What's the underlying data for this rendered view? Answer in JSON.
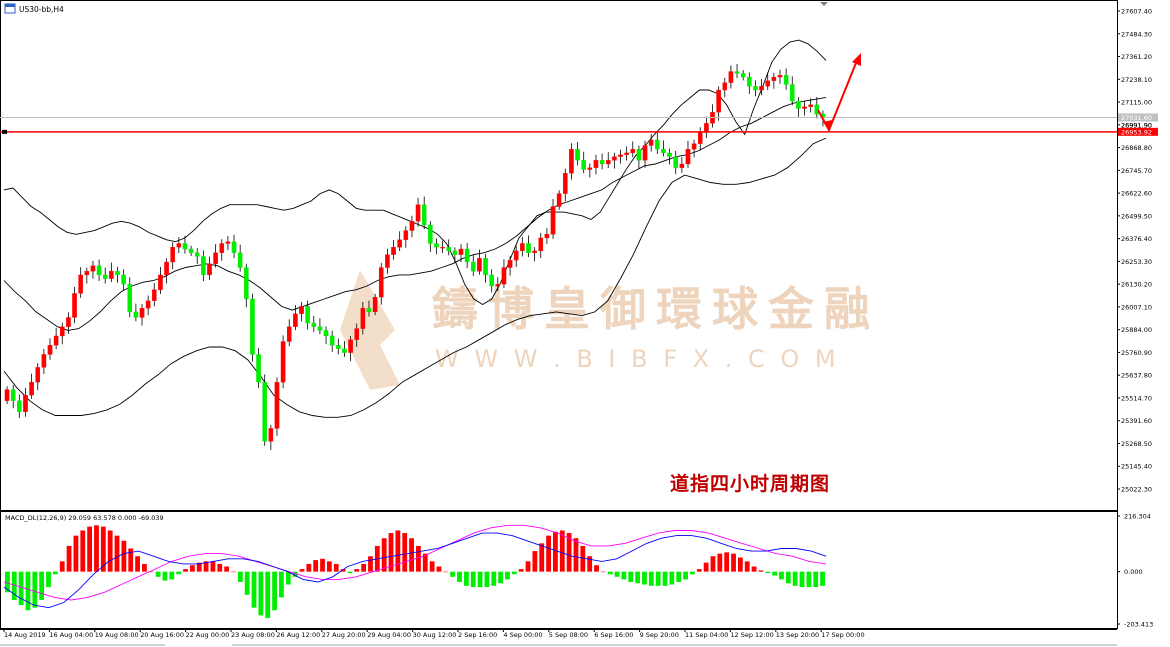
{
  "window": {
    "symbol_label": "US30-bb,H4",
    "icon": "chart-window-icon"
  },
  "annotation": {
    "caption": "道指四小时周期图",
    "caption_color": "#c00000",
    "arrow_color": "#ff0000"
  },
  "watermark": {
    "cn": "鑄博皇御環球金融",
    "url": "W W W . B I B F X . C O M",
    "color": "#e9c6a6"
  },
  "colors": {
    "bull": "#ff0000",
    "bear": "#00ee00",
    "bbands": "#000000",
    "hline": "#ff0000",
    "current_line": "#c0c0c0",
    "macd_line": "#0000ff",
    "signal_line": "#ff00ff"
  },
  "chart_data": [
    {
      "type": "candlestick",
      "title": "US30-bb,H4",
      "ylim": [
        24960,
        27660
      ],
      "y_ticks": [
        "27607.40",
        "27484.30",
        "27361.20",
        "27238.10",
        "27115.00",
        "26991.90",
        "26868.80",
        "26745.70",
        "26622.60",
        "26499.50",
        "26376.40",
        "26253.30",
        "26130.20",
        "26007.10",
        "25884.00",
        "25760.90",
        "25637.80",
        "25514.70",
        "25391.60",
        "25268.50",
        "25145.40",
        "25022.30"
      ],
      "price_labels": [
        {
          "text": "27031.60",
          "role": "current-price",
          "value": 27031.6
        },
        {
          "text": "26991.90",
          "role": "tick",
          "value": 26991.9
        },
        {
          "text": "26953.92",
          "role": "horizontal-line",
          "value": 26953.92
        }
      ],
      "horizontal_line": 26953.92,
      "current_price": 27031.6,
      "x_labels": [
        "14 Aug 2019",
        "16 Aug 04:00",
        "19 Aug 08:00",
        "20 Aug 16:00",
        "22 Aug 00:00",
        "23 Aug 08:00",
        "26 Aug 12:00",
        "27 Aug 20:00",
        "29 Aug 04:00",
        "30 Aug 12:00",
        "2 Sep 16:00",
        "4 Sep 00:00",
        "5 Sep 08:00",
        "6 Sep 16:00",
        "9 Sep 20:00",
        "11 Sep 04:00",
        "12 Sep 12:00",
        "13 Sep 20:00",
        "17 Sep 00:00"
      ],
      "ohlc_bull": [
        1,
        0,
        1,
        0,
        1,
        1,
        1,
        0,
        1,
        1,
        0,
        1,
        0,
        1,
        0,
        1,
        1,
        0,
        0,
        1,
        0,
        1,
        0,
        1,
        1,
        0,
        1,
        1,
        0,
        1,
        0,
        1,
        0,
        1,
        0,
        1,
        0,
        0,
        1,
        0,
        0,
        0,
        1,
        0,
        0,
        1,
        0,
        1,
        1,
        0,
        0,
        1,
        0,
        1,
        0,
        1,
        0,
        1,
        1,
        0,
        0,
        1,
        0,
        1,
        1,
        1,
        1,
        0,
        1,
        1,
        0,
        0,
        1,
        0,
        1,
        0,
        0,
        1,
        0,
        1,
        1,
        1,
        0,
        1,
        1,
        0,
        0,
        1,
        0,
        0,
        1,
        0,
        1,
        1,
        0,
        0,
        1,
        0,
        1,
        1,
        0,
        1,
        1,
        0,
        0,
        0,
        1,
        0,
        1,
        1,
        1,
        1,
        1,
        0,
        1,
        1,
        1,
        0,
        1,
        0,
        1,
        0,
        1,
        0,
        1,
        0,
        1,
        0,
        1,
        0,
        1,
        0,
        1,
        0,
        1,
        0,
        0,
        1,
        0,
        1,
        0,
        1,
        1,
        1,
        1,
        1,
        0,
        1,
        1,
        0,
        1,
        1,
        1,
        0,
        0,
        1,
        0,
        1,
        0,
        1,
        0,
        1,
        0,
        0,
        1,
        0,
        1,
        0,
        0,
        0,
        1,
        0,
        0,
        0,
        0
      ],
      "closes": [
        25560,
        25500,
        25440,
        25530,
        25600,
        25680,
        25750,
        25800,
        25850,
        25900,
        25950,
        26080,
        26180,
        26200,
        26230,
        26180,
        26160,
        26200,
        26180,
        26130,
        25980,
        25950,
        26000,
        26040,
        26100,
        26180,
        26250,
        26330,
        26350,
        26320,
        26300,
        26280,
        26180,
        26240,
        26300,
        26350,
        26360,
        26300,
        26220,
        26050,
        25750,
        25600,
        25280,
        25350,
        25600,
        25820,
        25900,
        25970,
        26010,
        25920,
        25900,
        25880,
        25850,
        25800,
        25780,
        25760,
        25830,
        25890,
        26000,
        25980,
        26060,
        26220,
        26290,
        26330,
        26370,
        26420,
        26470,
        26560,
        26450,
        26350,
        26330,
        26330,
        26310,
        26290,
        26320,
        26250,
        26200,
        26270,
        26180,
        26120,
        26130,
        26220,
        26260,
        26310,
        26350,
        26300,
        26310,
        26380,
        26400,
        26550,
        26620,
        26730,
        26860,
        26800,
        26750,
        26760,
        26800,
        26780,
        26800,
        26820,
        26830,
        26840,
        26860,
        26800,
        26880,
        26910,
        26860,
        26840,
        26820,
        26760,
        26780,
        26860,
        26890,
        26950,
        27000,
        27060,
        27180,
        27220,
        27280,
        27270,
        27250,
        27200,
        27180,
        27200,
        27230,
        27250,
        27260,
        27210,
        27120,
        27080,
        27090,
        27100,
        27050,
        27030
      ],
      "open_first": 25500,
      "bb_upper": [
        26640,
        26650,
        26600,
        26550,
        26520,
        26480,
        26440,
        26410,
        26400,
        26410,
        26420,
        26440,
        26460,
        26470,
        26460,
        26440,
        26410,
        26390,
        26370,
        26360,
        26380,
        26420,
        26470,
        26510,
        26540,
        26560,
        26560,
        26560,
        26560,
        26550,
        26540,
        26530,
        26540,
        26560,
        26580,
        26620,
        26640,
        26620,
        26580,
        26540,
        26530,
        26530,
        26530,
        26510,
        26490,
        26470,
        26450,
        26430,
        26400,
        26350,
        26250,
        26130,
        26050,
        26020,
        26050,
        26140,
        26260,
        26380,
        26440,
        26500,
        26520,
        26520,
        26520,
        26510,
        26500,
        26480,
        26520,
        26600,
        26680,
        26760,
        26830,
        26880,
        26940,
        26990,
        27050,
        27100,
        27140,
        27180,
        27180,
        27160,
        27100,
        27010,
        26940,
        27080,
        27200,
        27330,
        27400,
        27440,
        27450,
        27430,
        27390,
        27340
      ],
      "bb_mid": [
        26150,
        26090,
        26040,
        25980,
        25940,
        25900,
        25880,
        25890,
        25930,
        25980,
        26040,
        26090,
        26120,
        26140,
        26150,
        26170,
        26200,
        26220,
        26230,
        26240,
        26230,
        26200,
        26180,
        26150,
        26110,
        26060,
        26010,
        25990,
        26010,
        26030,
        26050,
        26070,
        26090,
        26100,
        26120,
        26150,
        26170,
        26180,
        26180,
        26190,
        26200,
        26220,
        26240,
        26270,
        26290,
        26300,
        26320,
        26350,
        26390,
        26440,
        26490,
        26530,
        26560,
        26580,
        26600,
        26620,
        26640,
        26680,
        26710,
        26740,
        26770,
        26780,
        26800,
        26820,
        26830,
        26850,
        26880,
        26910,
        26950,
        26980,
        27000,
        27030,
        27060,
        27090,
        27110,
        27120,
        27130,
        27140
      ],
      "bb_lower": [
        25660,
        25570,
        25500,
        25450,
        25420,
        25420,
        25420,
        25430,
        25450,
        25480,
        25530,
        25590,
        25640,
        25700,
        25740,
        25770,
        25790,
        25790,
        25770,
        25720,
        25630,
        25530,
        25480,
        25440,
        25420,
        25410,
        25410,
        25420,
        25450,
        25490,
        25540,
        25600,
        25640,
        25680,
        25720,
        25760,
        25790,
        25830,
        25870,
        25910,
        25940,
        25960,
        25970,
        25980,
        25970,
        25960,
        25980,
        26040,
        26160,
        26290,
        26440,
        26580,
        26680,
        26720,
        26700,
        26680,
        26670,
        26670,
        26680,
        26700,
        26720,
        26760,
        26820,
        26890,
        26920
      ],
      "macd": {
        "label": "MACD_DL(12,26,9) 29.059 63.578 0.000 -69.039",
        "ylim": [
          -203.413,
          216.304
        ],
        "y_ticks": [
          "216.304",
          "0.000",
          "-203.413"
        ],
        "histogram": [
          -80,
          -110,
          -130,
          -150,
          -140,
          -110,
          -60,
          -10,
          40,
          100,
          140,
          160,
          175,
          180,
          175,
          160,
          140,
          120,
          90,
          60,
          30,
          0,
          -20,
          -35,
          -30,
          -10,
          10,
          25,
          35,
          40,
          40,
          30,
          20,
          0,
          -40,
          -90,
          -140,
          -170,
          -180,
          -150,
          -100,
          -50,
          -20,
          10,
          30,
          45,
          50,
          40,
          30,
          10,
          -5,
          10,
          30,
          60,
          100,
          130,
          150,
          160,
          150,
          130,
          100,
          70,
          40,
          20,
          0,
          -20,
          -40,
          -55,
          -60,
          -60,
          -60,
          -55,
          -45,
          -30,
          -10,
          10,
          40,
          80,
          110,
          140,
          155,
          160,
          150,
          130,
          100,
          60,
          25,
          0,
          -10,
          -20,
          -30,
          -40,
          -45,
          -50,
          -55,
          -55,
          -55,
          -50,
          -40,
          -30,
          -10,
          10,
          35,
          60,
          70,
          75,
          70,
          55,
          40,
          20,
          5,
          -5,
          -15,
          -30,
          -45,
          -55,
          -60,
          -60,
          -60,
          -55
        ],
        "macd_line": [
          -60,
          -100,
          -130,
          -140,
          -120,
          -70,
          -10,
          40,
          70,
          80,
          60,
          40,
          30,
          30,
          40,
          50,
          50,
          40,
          20,
          0,
          -30,
          -40,
          -20,
          20,
          40,
          50,
          60,
          70,
          80,
          90,
          110,
          130,
          150,
          150,
          140,
          120,
          100,
          80,
          60,
          50,
          40,
          50,
          80,
          110,
          130,
          140,
          140,
          130,
          110,
          90,
          80,
          80,
          90,
          90,
          80,
          60
        ],
        "signal_line": [
          -40,
          -60,
          -80,
          -100,
          -110,
          -100,
          -80,
          -50,
          -20,
          10,
          40,
          60,
          70,
          70,
          60,
          40,
          20,
          0,
          -20,
          -30,
          -30,
          -20,
          0,
          20,
          40,
          60,
          90,
          120,
          150,
          170,
          180,
          180,
          170,
          150,
          120,
          100,
          100,
          110,
          130,
          150,
          160,
          160,
          150,
          130,
          110,
          90,
          70,
          60,
          40,
          30
        ]
      }
    }
  ]
}
